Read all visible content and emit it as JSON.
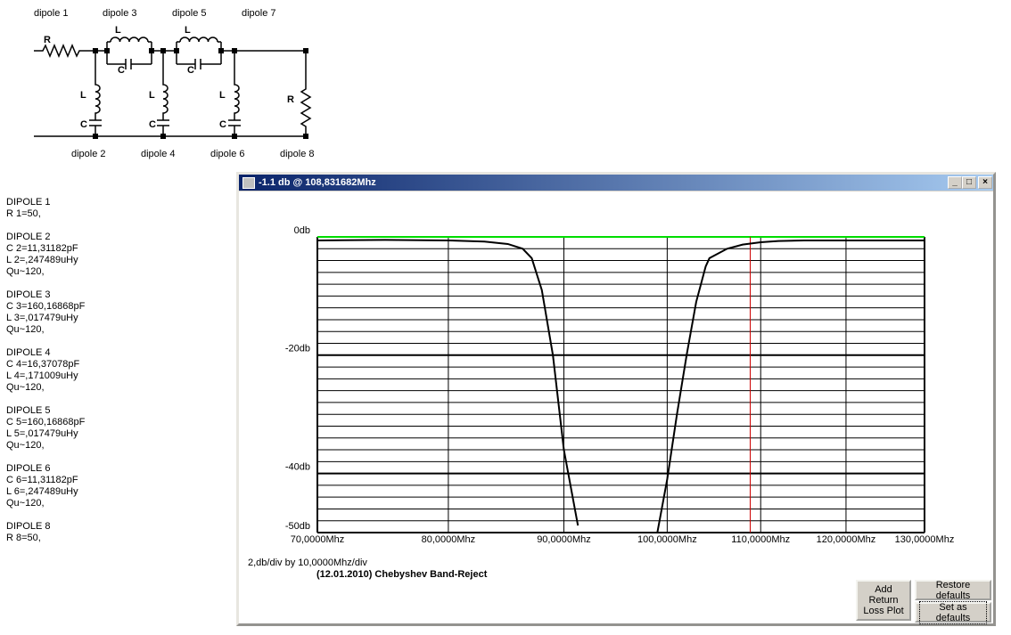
{
  "schematic": {
    "dipole_labels_top": [
      "dipole 1",
      "dipole 3",
      "dipole 5",
      "dipole 7"
    ],
    "dipole_labels_bottom": [
      "dipole 2",
      "dipole 4",
      "dipole 6",
      "dipole 8"
    ],
    "symbols": [
      "R",
      "L",
      "C",
      "L",
      "C",
      "L",
      "C",
      "L",
      "C",
      "L",
      "C",
      "R"
    ]
  },
  "components": [
    {
      "title": "DIPOLE 1",
      "lines": [
        "R 1=50,"
      ]
    },
    {
      "title": "DIPOLE 2",
      "lines": [
        "C 2=11,31182pF",
        "L 2=,247489uHy",
        "Qu~120,"
      ]
    },
    {
      "title": "DIPOLE 3",
      "lines": [
        "C 3=160,16868pF",
        "L 3=,017479uHy",
        "Qu~120,"
      ]
    },
    {
      "title": "DIPOLE 4",
      "lines": [
        "C 4=16,37078pF",
        "L 4=,171009uHy",
        "Qu~120,"
      ]
    },
    {
      "title": "DIPOLE 5",
      "lines": [
        "C 5=160,16868pF",
        "L 5=,017479uHy",
        "Qu~120,"
      ]
    },
    {
      "title": "DIPOLE 6",
      "lines": [
        "C 6=11,31182pF",
        "L 6=,247489uHy",
        "Qu~120,"
      ]
    },
    {
      "title": "DIPOLE 8",
      "lines": [
        "R 8=50,"
      ]
    }
  ],
  "window": {
    "title": "-1.1 db @ 108,831682Mhz",
    "buttons": [
      "Add Return Loss Plot",
      "Restore defaults",
      "Set as defaults"
    ]
  },
  "chart_data": {
    "type": "line",
    "title": "(12.01.2010) Chebyshev Band-Reject",
    "scale_note": "2,db/div by 10,0000Mhz/div",
    "x": [
      70,
      75,
      80,
      83,
      85,
      86.3,
      87.1,
      88,
      89,
      90,
      91.3,
      95,
      99,
      100,
      101,
      102,
      103,
      104,
      104.4,
      106.3,
      108,
      110,
      112,
      115,
      120,
      125,
      130
    ],
    "values": [
      -0.6,
      -0.5,
      -0.6,
      -0.8,
      -1.2,
      -2,
      -3.6,
      -9,
      -20,
      -36,
      -48.8,
      null,
      -50,
      -41,
      -30,
      -20,
      -11,
      -5,
      -3.6,
      -2,
      -1.3,
      -0.9,
      -0.7,
      -0.6,
      -0.6,
      -0.6,
      -0.6
    ],
    "color": "#000000",
    "xscale": "log",
    "xlim": [
      70,
      130
    ],
    "xticks": [
      {
        "value": 70,
        "label": "70,0000Mhz"
      },
      {
        "value": 80,
        "label": "80,0000Mhz"
      },
      {
        "value": 90,
        "label": "90,0000Mhz"
      },
      {
        "value": 100,
        "label": "100,0000Mhz"
      },
      {
        "value": 110,
        "label": "110,0000Mhz"
      },
      {
        "value": 120,
        "label": "120,0000Mhz"
      },
      {
        "value": 130,
        "label": "130,0000Mhz"
      }
    ],
    "ylim": [
      -50,
      0
    ],
    "yticks": [
      {
        "value": 0,
        "label": "0db"
      },
      {
        "value": -20,
        "label": "-20db"
      },
      {
        "value": -40,
        "label": "-40db"
      },
      {
        "value": -50,
        "label": "-50db"
      }
    ],
    "ygrid": [
      0,
      -2,
      -4,
      -6,
      -8,
      -10,
      -12,
      -14,
      -16,
      -18,
      -20,
      -22,
      -24,
      -26,
      -28,
      -30,
      -32,
      -34,
      -36,
      -38,
      -40,
      -42,
      -44,
      -46,
      -48,
      -50
    ],
    "grid": true,
    "grid_color": "#000000",
    "zero_line_color": "#00dd00",
    "cursor_x": 108.831682,
    "cursor_color": "#cc0000"
  }
}
